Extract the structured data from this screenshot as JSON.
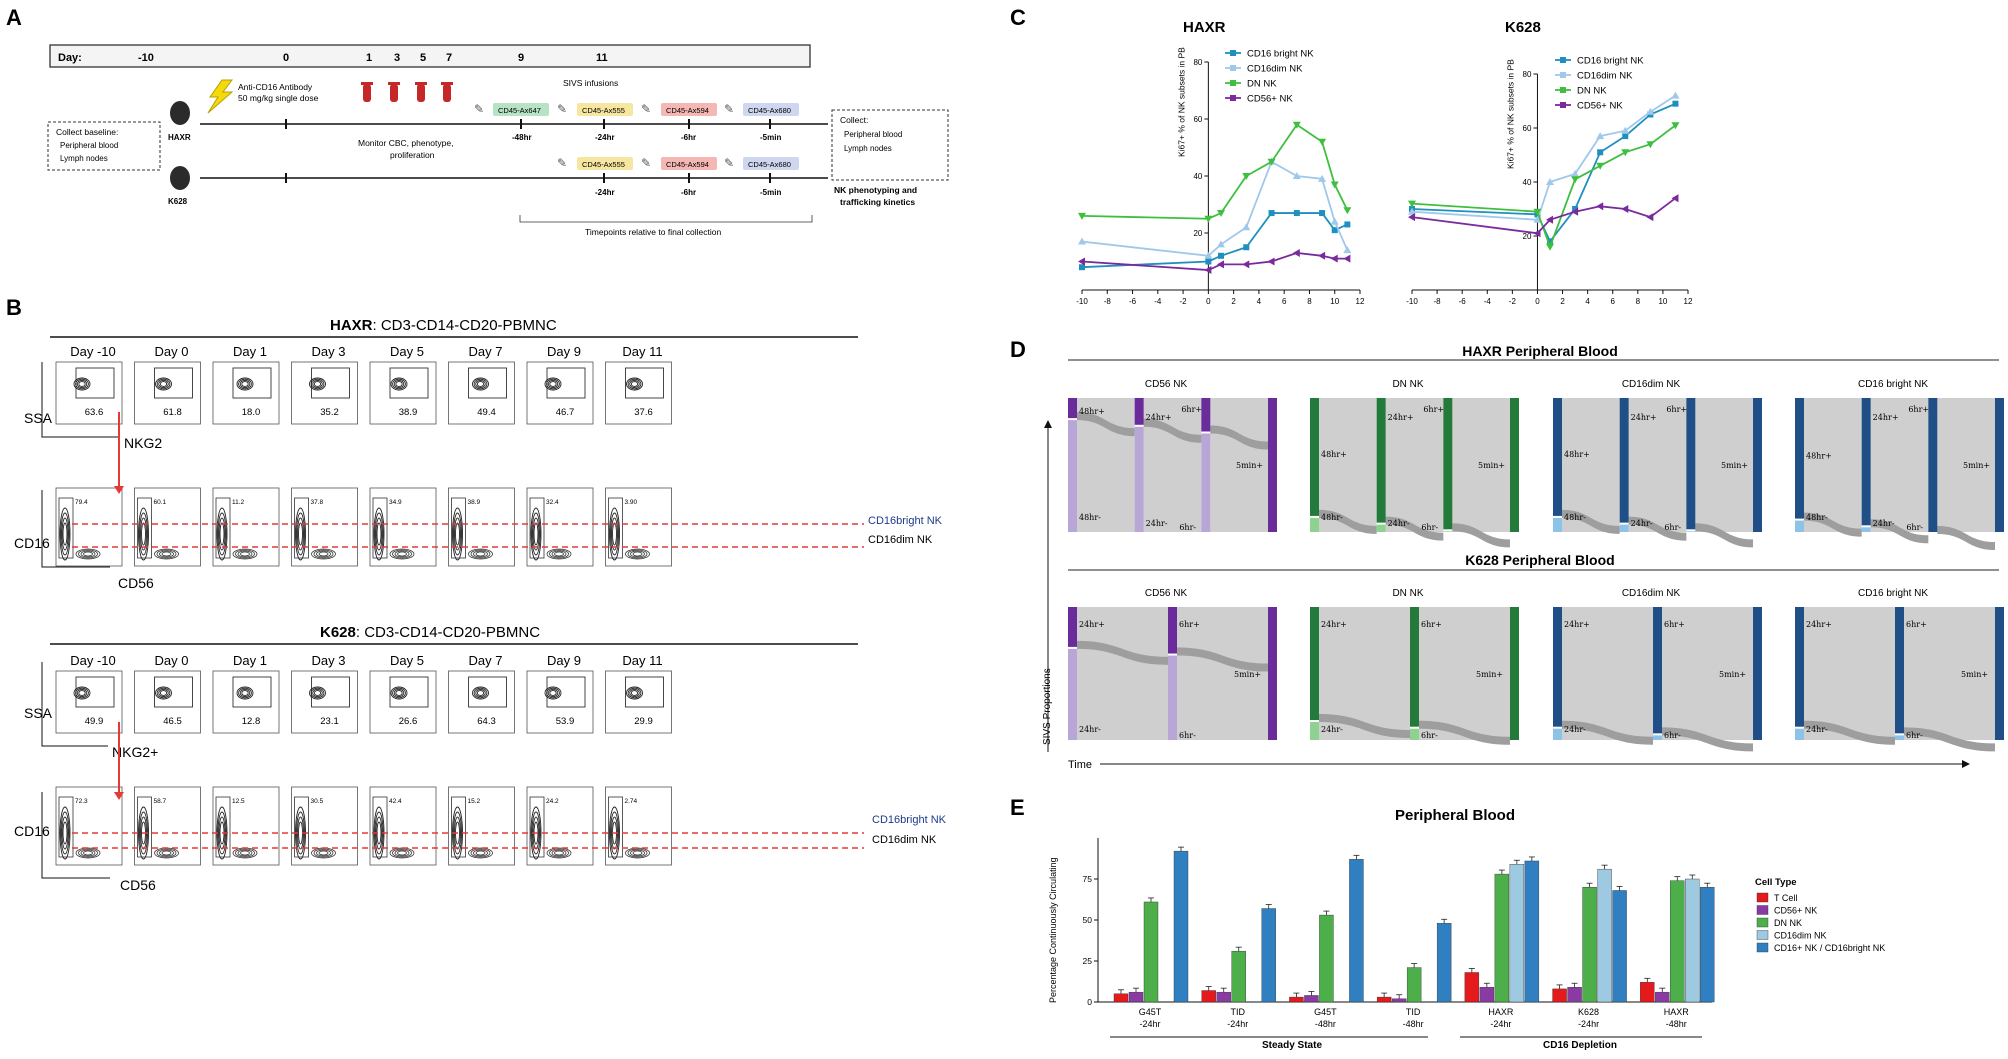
{
  "panel_labels": [
    "A",
    "B",
    "C",
    "D",
    "E"
  ],
  "panelA": {
    "day_label": "Day:",
    "days": [
      "-10",
      "0",
      "1",
      "3",
      "5",
      "7",
      "9",
      "11"
    ],
    "antibody_line1": "Anti-CD16 Antibody",
    "antibody_line2": "50 mg/kg single dose",
    "sivs_title": "SIVS infusions",
    "baseline_title": "Collect baseline:",
    "baseline_items": [
      "Peripheral blood",
      "Lymph nodes"
    ],
    "animals": [
      "HAXR",
      "K628"
    ],
    "monitor_lines": [
      "Monitor CBC, phenotype,",
      "proliferation"
    ],
    "haxr_tags": [
      "CD45-Ax647",
      "CD45-Ax555",
      "CD45-Ax594",
      "CD45-Ax680"
    ],
    "haxr_times": [
      "-48hr",
      "-24hr",
      "-6hr",
      "-5min"
    ],
    "k628_tags": [
      "CD45-Ax555",
      "CD45-Ax594",
      "CD45-Ax680"
    ],
    "k628_times": [
      "-24hr",
      "-6hr",
      "-5min"
    ],
    "collect_title": "Collect:",
    "collect_items": [
      "Peripheral blood",
      "Lymph nodes"
    ],
    "kinetics_lines": [
      "NK phenotyping and",
      "trafficking kinetics"
    ],
    "timepoints_note": "Timepoints relative to final collection",
    "tag_colors": {
      "Ax647": "#b7e2c4",
      "Ax555": "#f7e6a0",
      "Ax594": "#f5b7b3",
      "Ax680": "#cfd6ef"
    }
  },
  "panelB": {
    "haxr_title_bold": "HAXR",
    "haxr_title_rest": ": CD3-CD14-CD20-PBMNC",
    "k628_title_bold": "K628",
    "k628_title_rest": ":  CD3-CD14-CD20-PBMNC",
    "days": [
      "Day -10",
      "Day 0",
      "Day 1",
      "Day 3",
      "Day 5",
      "Day 7",
      "Day 9",
      "Day 11"
    ],
    "haxr_nkg2_values": [
      "63.6",
      "61.8",
      "18.0",
      "35.2",
      "38.9",
      "49.4",
      "46.7",
      "37.6"
    ],
    "k628_nkg2_values": [
      "49.9",
      "46.5",
      "12.8",
      "23.1",
      "26.6",
      "64.3",
      "53.9",
      "29.9"
    ],
    "axis_ssa": "SSA",
    "axis_nkg2_haxr": "NKG2",
    "axis_nkg2_k628": "NKG2+",
    "axis_cd16": "CD16",
    "axis_cd56": "CD56",
    "bright_label": "CD16bright NK",
    "dim_label": "CD16dim NK",
    "haxr_cd16_values": [
      "79.4",
      "60.1",
      "11.2",
      "37.8",
      "34.9",
      "38.9",
      "32.4",
      "3.90"
    ],
    "k628_cd16_values": [
      "72.3",
      "58.7",
      "12.5",
      "30.5",
      "42.4",
      "15.2",
      "24.2",
      "2.74"
    ]
  },
  "panelC": {
    "charts": [
      {
        "title": "HAXR",
        "type": "line",
        "ylabel": "Ki67+ % of NK subsets in PB",
        "x": [
          -10,
          0,
          1,
          3,
          5,
          7,
          9,
          10,
          11
        ],
        "xticks": [
          "-10",
          "-8",
          "-6",
          "-4",
          "-2",
          "0",
          "2",
          "4",
          "6",
          "8",
          "10",
          "12"
        ],
        "yticks": [
          "20",
          "40",
          "60",
          "80"
        ],
        "xlim": [
          -10,
          12
        ],
        "ylim": [
          0,
          80
        ],
        "series": [
          {
            "name": "CD16 bright NK",
            "color": "#1f8fbf",
            "marker": "square",
            "values": [
              8,
              10,
              12,
              15,
              27,
              27,
              27,
              21,
              23
            ]
          },
          {
            "name": "CD16dim NK",
            "color": "#9fc8ea",
            "marker": "triangle",
            "values": [
              17,
              12,
              16,
              22,
              45,
              40,
              39,
              24,
              14
            ]
          },
          {
            "name": "DN NK",
            "color": "#3fbf3f",
            "marker": "triangle-down",
            "values": [
              26,
              25,
              27,
              40,
              45,
              58,
              52,
              37,
              28
            ]
          },
          {
            "name": "CD56+ NK",
            "color": "#7a2a9c",
            "marker": "triangle-left",
            "values": [
              10,
              7,
              9,
              9,
              10,
              13,
              12,
              11,
              11
            ]
          }
        ]
      },
      {
        "title": "K628",
        "type": "line",
        "ylabel": "Ki67+ % of NK subsets in PB",
        "x": [
          -10,
          0,
          1,
          3,
          5,
          7,
          9,
          11
        ],
        "xticks": [
          "-10",
          "-8",
          "-6",
          "-4",
          "-2",
          "0",
          "2",
          "4",
          "6",
          "8",
          "10",
          "12"
        ],
        "yticks": [
          "20",
          "40",
          "60",
          "80"
        ],
        "xlim": [
          -10,
          12
        ],
        "ylim": [
          0,
          80
        ],
        "series": [
          {
            "name": "CD16 bright NK",
            "color": "#1f8fbf",
            "marker": "square",
            "values": [
              30,
              28,
              18,
              30,
              51,
              57,
              65,
              69
            ]
          },
          {
            "name": "CD16dim NK",
            "color": "#9fc8ea",
            "marker": "triangle",
            "values": [
              29,
              26,
              40,
              43,
              57,
              59,
              66,
              72
            ]
          },
          {
            "name": "DN NK",
            "color": "#3fbf3f",
            "marker": "triangle-down",
            "values": [
              32,
              29,
              16,
              41,
              46,
              51,
              54,
              61
            ]
          },
          {
            "name": "CD56+ NK",
            "color": "#7a2a9c",
            "marker": "triangle-left",
            "values": [
              27,
              21,
              26,
              29,
              31,
              30,
              27,
              34
            ]
          }
        ]
      }
    ]
  },
  "panelD": {
    "haxr_title": "HAXR Peripheral Blood",
    "k628_title": "K628 Peripheral Blood",
    "subsets": [
      "CD56 NK",
      "DN NK",
      "CD16dim NK",
      "CD16 bright NK"
    ],
    "subset_colors": [
      "#6a2c9a",
      "#237a3b",
      "#1f4f86",
      "#1f4f86"
    ],
    "subset_light_colors": [
      "#b7a6d6",
      "#8fd18f",
      "#8ec3e8",
      "#8ec3e8"
    ],
    "haxr_labels": [
      "48hr+",
      "24hr+",
      "6hr+",
      "5min+",
      "48hr-",
      "24hr-",
      "6hr-"
    ],
    "k628_labels": [
      "24hr+",
      "6hr+",
      "5min+",
      "24hr-",
      "6hr-"
    ],
    "haxr_plus_fractions": [
      0.15,
      0.88,
      0.88,
      0.9
    ],
    "k628_plus_fractions": [
      0.3,
      0.85,
      0.9,
      0.9
    ],
    "ylabel": "SIVS Proportions",
    "xlabel": "Time"
  },
  "panelE": {
    "title": "Peripheral Blood",
    "ylabel": "Percentage Continuously Circulating",
    "legend_title": "Cell Type",
    "groups_label": [
      "Steady State",
      "CD16 Depletion"
    ],
    "chart_data": {
      "type": "bar",
      "title": "Peripheral Blood",
      "ylabel": "Percentage Continuously Circulating",
      "ylim": [
        0,
        100
      ],
      "yticks": [
        "0",
        "25",
        "50",
        "75"
      ],
      "categories": [
        "G45T\n-24hr",
        "TID\n-24hr",
        "G45T\n-48hr",
        "TID\n-48hr",
        "HAXR\n-24hr",
        "K628\n-24hr",
        "HAXR\n-48hr"
      ],
      "category_line1": [
        "G45T",
        "TID",
        "G45T",
        "TID",
        "HAXR",
        "K628",
        "HAXR"
      ],
      "category_line2": [
        "-24hr",
        "-24hr",
        "-48hr",
        "-48hr",
        "-24hr",
        "-24hr",
        "-48hr"
      ],
      "series": [
        {
          "name": "T Cell",
          "color": "#e41a1c",
          "values": [
            5,
            7,
            3,
            3,
            18,
            8,
            12
          ]
        },
        {
          "name": "CD56+ NK",
          "color": "#8a3aa3",
          "values": [
            6,
            6,
            4,
            2,
            9,
            9,
            6
          ]
        },
        {
          "name": "DN NK",
          "color": "#4daf4a",
          "values": [
            61,
            31,
            53,
            21,
            78,
            70,
            74
          ]
        },
        {
          "name": "CD16dim NK",
          "color": "#9ecae1",
          "values": [
            null,
            null,
            null,
            null,
            84,
            81,
            75
          ]
        },
        {
          "name": "CD16+ NK  / CD16bright NK",
          "color": "#2f7fc1",
          "values": [
            92,
            57,
            87,
            48,
            86,
            68,
            70
          ]
        }
      ]
    }
  }
}
